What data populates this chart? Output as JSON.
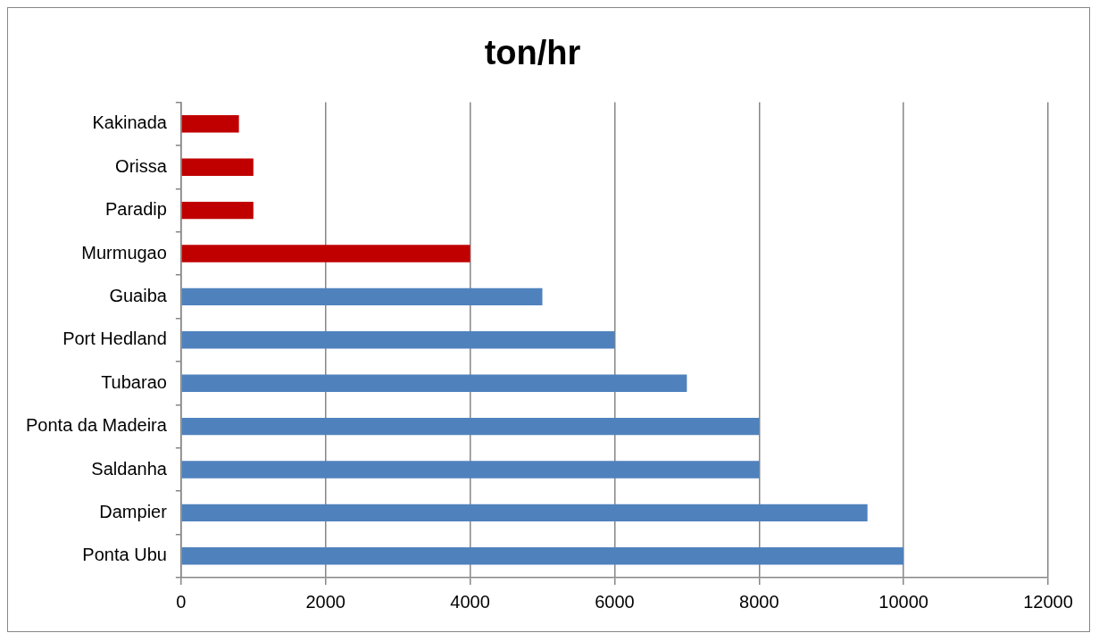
{
  "chart_data": {
    "type": "bar",
    "orientation": "horizontal",
    "title": "ton/hr",
    "categories": [
      "Kakinada",
      "Orissa",
      "Paradip",
      "Murmugao",
      "Guaiba",
      "Port Hedland",
      "Tubarao",
      "Ponta da Madeira",
      "Saldanha",
      "Dampier",
      "Ponta Ubu"
    ],
    "values": [
      800,
      1000,
      1000,
      4000,
      5000,
      6000,
      7000,
      8000,
      8000,
      9500,
      10000
    ],
    "colors": [
      "#c00000",
      "#c00000",
      "#c00000",
      "#c00000",
      "#4f81bd",
      "#4f81bd",
      "#4f81bd",
      "#4f81bd",
      "#4f81bd",
      "#4f81bd",
      "#4f81bd"
    ],
    "xlim": [
      0,
      12000
    ],
    "xticks": [
      0,
      2000,
      4000,
      6000,
      8000,
      10000,
      12000
    ],
    "grid": "x",
    "legend": false
  }
}
